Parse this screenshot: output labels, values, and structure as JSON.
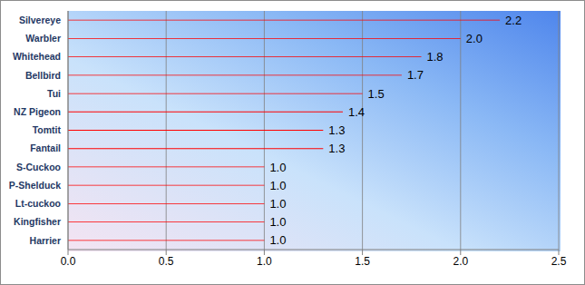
{
  "chart_data": {
    "type": "bar",
    "orientation": "horizontal",
    "categories": [
      "Silvereye",
      "Warbler",
      "Whitehead",
      "Bellbird",
      "Tui",
      "NZ Pigeon",
      "Tomtit",
      "Fantail",
      "S-Cuckoo",
      "P-Shelduck",
      "Lt-cuckoo",
      "Kingfisher",
      "Harrier"
    ],
    "values": [
      2.2,
      2.0,
      1.8,
      1.7,
      1.5,
      1.4,
      1.3,
      1.3,
      1.0,
      1.0,
      1.0,
      1.0,
      1.0
    ],
    "value_labels": [
      "2.2",
      "2.0",
      "1.8",
      "1.7",
      "1.5",
      "1.4",
      "1.3",
      "1.3",
      "1.0",
      "1.0",
      "1.0",
      "1.0",
      "1.0"
    ],
    "color": "#ff0000",
    "xlim": [
      0,
      2.5
    ],
    "xticks": [
      {
        "value": 0,
        "label": "0.0"
      },
      {
        "value": 0.5,
        "label": "0.5"
      },
      {
        "value": 1,
        "label": "1.0"
      },
      {
        "value": 1.5,
        "label": "1.5"
      },
      {
        "value": 2,
        "label": "2.0"
      },
      {
        "value": 2.5,
        "label": "2.5"
      }
    ],
    "grid": true,
    "data_labels": true
  }
}
